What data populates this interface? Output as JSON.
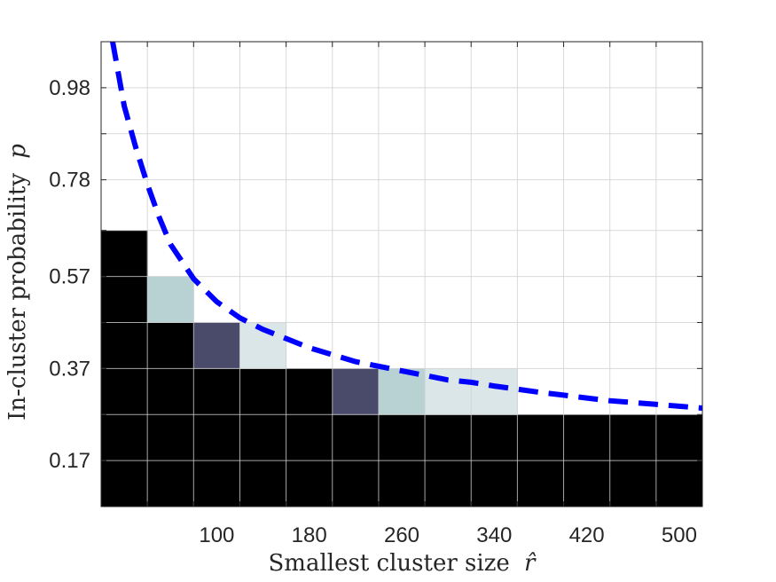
{
  "chart_data": {
    "type": "heatmap",
    "xlabel": "Smallest cluster size",
    "xlabel_symbol": "r̂",
    "ylabel": "In-cluster probability",
    "ylabel_symbol": "p",
    "xlim": [
      0,
      520
    ],
    "ylim": [
      0.07,
      1.08
    ],
    "x_ticks": [
      100,
      180,
      260,
      340,
      420,
      500
    ],
    "y_ticks": [
      0.17,
      0.37,
      0.57,
      0.78,
      0.98
    ],
    "grid": true,
    "columns": [
      20,
      60,
      100,
      140,
      180,
      220,
      260,
      300,
      340,
      380,
      420,
      460,
      500
    ],
    "rows": [
      0.12,
      0.22,
      0.32,
      0.42,
      0.52,
      0.62,
      0.72,
      0.82,
      0.92,
      1.02
    ],
    "colormap": {
      "low": "#000000",
      "mid": "#4a4a6a",
      "high": "#ffffff"
    },
    "cells": [
      [
        20,
        0.12,
        0.0
      ],
      [
        20,
        0.22,
        0.0
      ],
      [
        20,
        0.32,
        0.0
      ],
      [
        20,
        0.42,
        0.0
      ],
      [
        20,
        0.52,
        0.0
      ],
      [
        20,
        0.62,
        0.0
      ],
      [
        60,
        0.12,
        0.0
      ],
      [
        60,
        0.22,
        0.0
      ],
      [
        60,
        0.32,
        0.0
      ],
      [
        60,
        0.42,
        0.0
      ],
      [
        60,
        0.52,
        0.72
      ],
      [
        100,
        0.12,
        0.0
      ],
      [
        100,
        0.22,
        0.0
      ],
      [
        100,
        0.32,
        0.0
      ],
      [
        100,
        0.42,
        0.3
      ],
      [
        140,
        0.12,
        0.0
      ],
      [
        140,
        0.22,
        0.0
      ],
      [
        140,
        0.32,
        0.0
      ],
      [
        140,
        0.42,
        0.86
      ],
      [
        180,
        0.12,
        0.0
      ],
      [
        180,
        0.22,
        0.0
      ],
      [
        180,
        0.32,
        0.0
      ],
      [
        220,
        0.12,
        0.0
      ],
      [
        220,
        0.22,
        0.0
      ],
      [
        220,
        0.32,
        0.3
      ],
      [
        260,
        0.12,
        0.0
      ],
      [
        260,
        0.22,
        0.0
      ],
      [
        260,
        0.32,
        0.72
      ],
      [
        300,
        0.12,
        0.0
      ],
      [
        300,
        0.22,
        0.0
      ],
      [
        300,
        0.32,
        0.86
      ],
      [
        340,
        0.12,
        0.0
      ],
      [
        340,
        0.22,
        0.0
      ],
      [
        340,
        0.32,
        0.86
      ],
      [
        380,
        0.12,
        0.0
      ],
      [
        380,
        0.22,
        0.0
      ],
      [
        420,
        0.12,
        0.0
      ],
      [
        420,
        0.22,
        0.0
      ],
      [
        460,
        0.12,
        0.0
      ],
      [
        460,
        0.22,
        0.0
      ],
      [
        500,
        0.12,
        0.0
      ],
      [
        500,
        0.22,
        0.0
      ]
    ],
    "curve": {
      "style": "dashed",
      "color": "#0000ff",
      "points": [
        [
          10,
          1.08
        ],
        [
          20,
          0.94
        ],
        [
          30,
          0.85
        ],
        [
          40,
          0.77
        ],
        [
          50,
          0.7
        ],
        [
          60,
          0.64
        ],
        [
          80,
          0.565
        ],
        [
          100,
          0.515
        ],
        [
          120,
          0.48
        ],
        [
          140,
          0.455
        ],
        [
          160,
          0.435
        ],
        [
          180,
          0.415
        ],
        [
          200,
          0.4
        ],
        [
          220,
          0.385
        ],
        [
          240,
          0.375
        ],
        [
          260,
          0.365
        ],
        [
          280,
          0.355
        ],
        [
          300,
          0.345
        ],
        [
          320,
          0.34
        ],
        [
          340,
          0.332
        ],
        [
          360,
          0.325
        ],
        [
          380,
          0.318
        ],
        [
          400,
          0.312
        ],
        [
          420,
          0.306
        ],
        [
          440,
          0.3
        ],
        [
          460,
          0.296
        ],
        [
          480,
          0.292
        ],
        [
          500,
          0.288
        ],
        [
          520,
          0.284
        ]
      ]
    }
  }
}
